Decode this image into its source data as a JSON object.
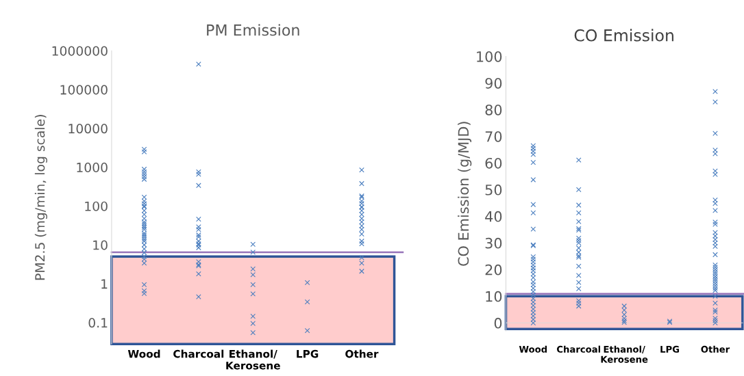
{
  "chart_data": [
    {
      "type": "scatter",
      "title": "PM Emission",
      "ylabel": "PM2.5 (mg/min, log scale)",
      "log": "y",
      "marker": "cross",
      "grid": false,
      "categories": [
        "Wood",
        "Charcoal",
        "Ethanol/\nKerosene",
        "LPG",
        "Other"
      ],
      "ylim": [
        0.028,
        1000000
      ],
      "yticks": [
        0.1,
        1,
        10,
        100,
        1000,
        10000,
        100000,
        1000000
      ],
      "ref_lines": [
        {
          "axis": "y",
          "value": 6.5,
          "label": null,
          "color": "#9673b9"
        }
      ],
      "bands": [
        {
          "axis": "y",
          "from": 0.028,
          "to": 5,
          "label": null,
          "color": "#ffcccc"
        }
      ],
      "series": [
        {
          "color": "#4a7ebf",
          "x": [
            "Wood",
            "Wood",
            "Wood",
            "Wood",
            "Wood",
            "Wood",
            "Wood",
            "Wood",
            "Wood",
            "Wood",
            "Wood",
            "Wood",
            "Wood",
            "Wood",
            "Wood",
            "Wood",
            "Wood",
            "Wood",
            "Wood",
            "Wood",
            "Wood",
            "Wood",
            "Wood",
            "Wood",
            "Wood",
            "Wood",
            "Wood",
            "Wood",
            "Wood",
            "Wood",
            "Wood",
            "Wood",
            "Wood",
            "Wood",
            "Charcoal",
            "Charcoal",
            "Charcoal",
            "Charcoal",
            "Charcoal",
            "Charcoal",
            "Charcoal",
            "Charcoal",
            "Charcoal",
            "Charcoal",
            "Charcoal",
            "Charcoal",
            "Charcoal",
            "Charcoal",
            "Charcoal",
            "Charcoal",
            "Charcoal",
            "Charcoal",
            "Ethanol/\nKerosene",
            "Ethanol/\nKerosene",
            "Ethanol/\nKerosene",
            "Ethanol/\nKerosene",
            "Ethanol/\nKerosene",
            "Ethanol/\nKerosene",
            "Ethanol/\nKerosene",
            "Ethanol/\nKerosene",
            "Ethanol/\nKerosene",
            "LPG",
            "LPG",
            "LPG",
            "Other",
            "Other",
            "Other",
            "Other",
            "Other",
            "Other",
            "Other",
            "Other",
            "Other",
            "Other",
            "Other",
            "Other",
            "Other",
            "Other",
            "Other",
            "Other",
            "Other",
            "Other",
            "Other",
            "Other"
          ],
          "values": [
            2900,
            2500,
            890,
            760,
            660,
            570,
            490,
            170,
            135,
            116,
            100,
            95,
            76,
            61,
            48,
            39,
            35,
            31,
            28,
            25,
            20,
            18,
            16,
            14,
            12.5,
            10,
            7.9,
            6.3,
            5.0,
            4.3,
            3.4,
            0.95,
            0.66,
            0.56,
            450000,
            760,
            660,
            340,
            46,
            29,
            25,
            18,
            16,
            12.5,
            10.7,
            10,
            8.5,
            3.7,
            3.1,
            2.9,
            1.8,
            0.46,
            10.4,
            6.5,
            2.4,
            1.7,
            0.95,
            0.55,
            0.145,
            0.095,
            0.055,
            1.07,
            0.34,
            0.062,
            850,
            380,
            182,
            170,
            135,
            117,
            93,
            95,
            76,
            61,
            48,
            39,
            31,
            25,
            19,
            12.5,
            10.7,
            4.7,
            3.4,
            2.1
          ]
        }
      ]
    },
    {
      "type": "scatter",
      "title": "CO Emission",
      "ylabel": "CO Emission (g/MJD)",
      "marker": "cross",
      "grid": false,
      "categories": [
        "Wood",
        "Charcoal",
        "Ethanol/\nKerosene",
        "LPG",
        "Other"
      ],
      "ylim": [
        -3,
        100
      ],
      "yticks": [
        0,
        10,
        20,
        30,
        40,
        50,
        60,
        70,
        80,
        90,
        100
      ],
      "ref_lines": [
        {
          "axis": "y",
          "value": 10.9,
          "label": null,
          "color": "#9673b9"
        }
      ],
      "bands": [
        {
          "axis": "y",
          "from": -2.3,
          "to": 10,
          "label": null,
          "color": "#ffcccc"
        }
      ],
      "series": [
        {
          "color": "#4a7ebf",
          "x": [
            "Wood",
            "Wood",
            "Wood",
            "Wood",
            "Wood",
            "Wood",
            "Wood",
            "Wood",
            "Wood",
            "Wood",
            "Wood",
            "Wood",
            "Wood",
            "Wood",
            "Wood",
            "Wood",
            "Wood",
            "Wood",
            "Wood",
            "Wood",
            "Wood",
            "Wood",
            "Wood",
            "Wood",
            "Wood",
            "Wood",
            "Wood",
            "Wood",
            "Wood",
            "Wood",
            "Wood",
            "Wood",
            "Charcoal",
            "Charcoal",
            "Charcoal",
            "Charcoal",
            "Charcoal",
            "Charcoal",
            "Charcoal",
            "Charcoal",
            "Charcoal",
            "Charcoal",
            "Charcoal",
            "Charcoal",
            "Charcoal",
            "Charcoal",
            "Charcoal",
            "Charcoal",
            "Charcoal",
            "Charcoal",
            "Charcoal",
            "Charcoal",
            "Charcoal",
            "Ethanol/\nKerosene",
            "Ethanol/\nKerosene",
            "Ethanol/\nKerosene",
            "Ethanol/\nKerosene",
            "Ethanol/\nKerosene",
            "Ethanol/\nKerosene",
            "LPG",
            "LPG",
            "Other",
            "Other",
            "Other",
            "Other",
            "Other",
            "Other",
            "Other",
            "Other",
            "Other",
            "Other",
            "Other",
            "Other",
            "Other",
            "Other",
            "Other",
            "Other",
            "Other",
            "Other",
            "Other",
            "Other",
            "Other",
            "Other",
            "Other",
            "Other",
            "Other",
            "Other",
            "Other",
            "Other",
            "Other",
            "Other",
            "Other",
            "Other",
            "Other",
            "Other",
            "Other",
            "Other",
            "Other"
          ],
          "values": [
            66.5,
            65.5,
            64.4,
            63.2,
            60.2,
            53.7,
            44.4,
            41.3,
            35.2,
            29.3,
            29.0,
            24.8,
            23.9,
            22.9,
            21.7,
            20.6,
            19.6,
            18.3,
            17.0,
            15.4,
            14.3,
            13.0,
            11.7,
            10.4,
            9.1,
            7.8,
            6.5,
            5.2,
            3.9,
            2.6,
            1.3,
            0.0,
            61.1,
            50.0,
            44.2,
            41.3,
            38.0,
            35.4,
            34.8,
            31.8,
            30.9,
            30.0,
            28.1,
            26.5,
            25.2,
            24.6,
            21.3,
            17.8,
            15.2,
            12.8,
            8.3,
            7.4,
            6.3,
            6.3,
            4.8,
            3.1,
            1.7,
            0.8,
            0.2,
            0.6,
            0.2,
            86.8,
            82.9,
            71.1,
            64.8,
            63.5,
            57.0,
            55.7,
            46.1,
            44.8,
            42.2,
            37.8,
            37.0,
            33.9,
            32.6,
            31.3,
            30.0,
            28.7,
            25.6,
            21.7,
            20.9,
            20.0,
            19.1,
            18.3,
            17.4,
            16.5,
            15.7,
            14.8,
            13.9,
            13.0,
            12.2,
            10.0,
            7.4,
            4.8,
            4.1,
            1.7,
            0.9,
            0.0
          ]
        }
      ]
    }
  ]
}
